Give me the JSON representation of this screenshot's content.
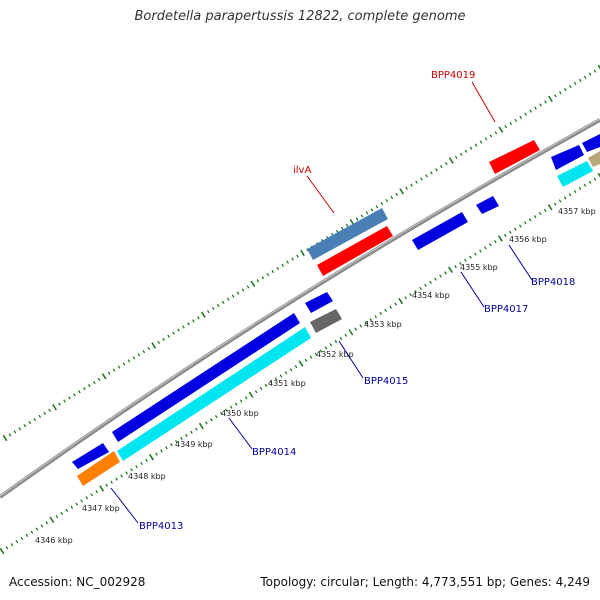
{
  "title": "Bordetella parapertussis 12822, complete genome",
  "footer": {
    "accession": "Accession: NC_002928",
    "summary": "Topology: circular; Length: 4,773,551 bp; Genes: 4,249"
  },
  "tick_labels": [
    "4346 kbp",
    "4347 kbp",
    "4348 kbp",
    "4349 kbp",
    "4350 kbp",
    "4351 kbp",
    "4352 kbp",
    "4353 kbp",
    "4354 kbp",
    "4355 kbp",
    "4356 kbp",
    "4357 kbp"
  ],
  "gene_labels": [
    "BPP4019",
    "ilvA",
    "BPP4018",
    "BPP4017",
    "BPP4015",
    "BPP4014",
    "BPP4013"
  ],
  "colors": {
    "backbone": "#8c8c8c",
    "ticks": "#1f7a1f",
    "blue_gene": "#0000e0",
    "red_gene": "#ff0000",
    "steel_gene": "#4a7fb5",
    "cyan_gene": "#00e6f0",
    "orange_gene": "#ff8000",
    "gray_gene": "#666666",
    "tan_gene": "#b8a878",
    "red_label": "#cc0000",
    "blue_label": "#000099"
  }
}
